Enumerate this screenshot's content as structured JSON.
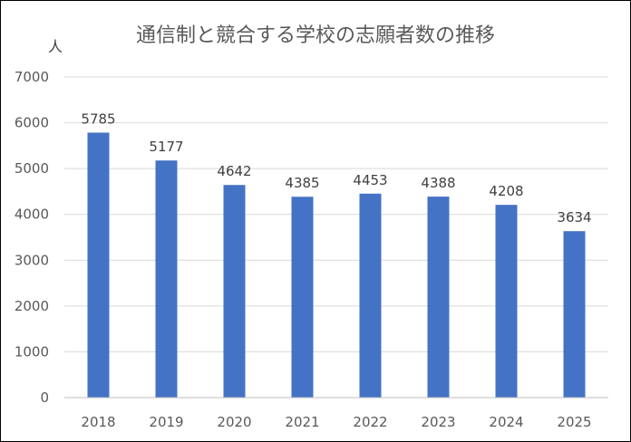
{
  "chart_data": {
    "type": "bar",
    "title": "通信制と競合する学校の志願者数の推移",
    "y_unit": "人",
    "categories": [
      "2018",
      "2019",
      "2020",
      "2021",
      "2022",
      "2023",
      "2024",
      "2025"
    ],
    "values": [
      5785,
      5177,
      4642,
      4385,
      4453,
      4388,
      4208,
      3634
    ],
    "ylim": [
      0,
      7000
    ],
    "y_ticks": [
      0,
      1000,
      2000,
      3000,
      4000,
      5000,
      6000,
      7000
    ],
    "grid": true,
    "legend": "none",
    "bar_color": "#4472c4"
  }
}
